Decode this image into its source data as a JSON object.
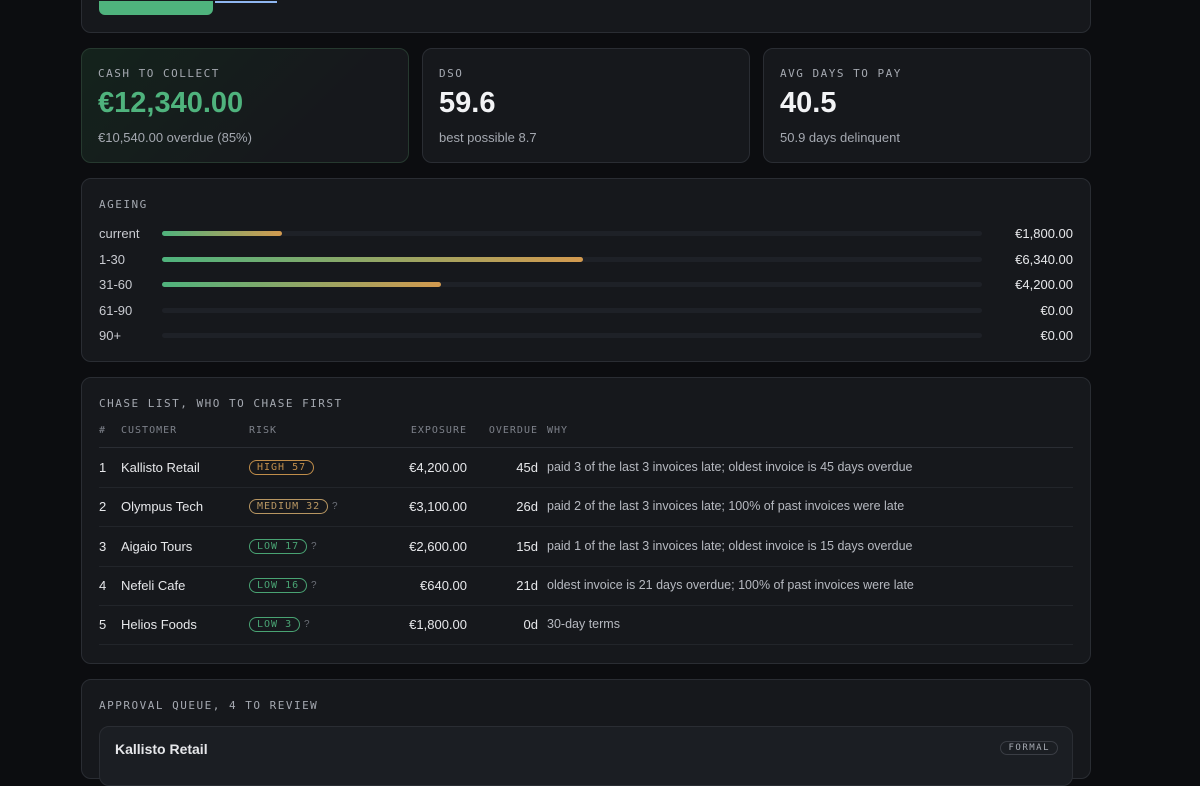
{
  "top": {
    "button": ""
  },
  "kpis": [
    {
      "label": "CASH TO COLLECT",
      "value": "€12,340.00",
      "note": "€10,540.00 overdue (85%)",
      "color": "#4fb37d"
    },
    {
      "label": "DSO",
      "value": "59.6",
      "note": "best possible 8.7",
      "color": "#f2f3f5"
    },
    {
      "label": "AVG DAYS TO PAY",
      "value": "40.5",
      "note": "50.9 days delinquent",
      "color": "#f2f3f5"
    }
  ],
  "ageing": {
    "title": "AGEING",
    "rows": [
      {
        "bucket": "current",
        "amount": 1800,
        "amount_label": "€1,800.00"
      },
      {
        "bucket": "1-30",
        "amount": 6340,
        "amount_label": "€6,340.00"
      },
      {
        "bucket": "31-60",
        "amount": 4200,
        "amount_label": "€4,200.00"
      },
      {
        "bucket": "61-90",
        "amount": 0,
        "amount_label": "€0.00"
      },
      {
        "bucket": "90+",
        "amount": 0,
        "amount_label": "€0.00"
      }
    ]
  },
  "chase": {
    "title": "CHASE LIST, WHO TO CHASE FIRST",
    "headers": [
      "#",
      "CUSTOMER",
      "RISK",
      "EXPOSURE",
      "OVERDUE",
      "WHY"
    ],
    "rows": [
      {
        "rank": "1",
        "customer": "Kallisto Retail",
        "risk": "HIGH 57",
        "risk_color": "#d39a4f",
        "exposure": "€4,200.00",
        "overdue": "45d",
        "why": "paid 3 of the last 3 invoices late; oldest invoice is 45 days overdue"
      },
      {
        "rank": "2",
        "customer": "Olympus Tech",
        "risk": "MEDIUM 32",
        "risk_color": "#c9a46a",
        "hint": "?",
        "exposure": "€3,100.00",
        "overdue": "26d",
        "why": "paid 2 of the last 3 invoices late; 100% of past invoices were late"
      },
      {
        "rank": "3",
        "customer": "Aigaio Tours",
        "risk": "LOW 17",
        "risk_color": "#4fb37d",
        "hint": "?",
        "exposure": "€2,600.00",
        "overdue": "15d",
        "why": "paid 1 of the last 3 invoices late; oldest invoice is 15 days overdue"
      },
      {
        "rank": "4",
        "customer": "Nefeli Cafe",
        "risk": "LOW 16",
        "risk_color": "#4fb37d",
        "hint": "?",
        "exposure": "€640.00",
        "overdue": "21d",
        "why": "oldest invoice is 21 days overdue; 100% of past invoices were late"
      },
      {
        "rank": "5",
        "customer": "Helios Foods",
        "risk": "LOW 3",
        "risk_color": "#4fb37d",
        "hint": "?",
        "exposure": "€1,800.00",
        "overdue": "0d",
        "why": "30-day terms"
      }
    ]
  },
  "approval": {
    "title": "APPROVAL QUEUE, 4 TO REVIEW",
    "items": [
      {
        "customer": "Kallisto Retail",
        "tone": "FORMAL"
      }
    ]
  }
}
